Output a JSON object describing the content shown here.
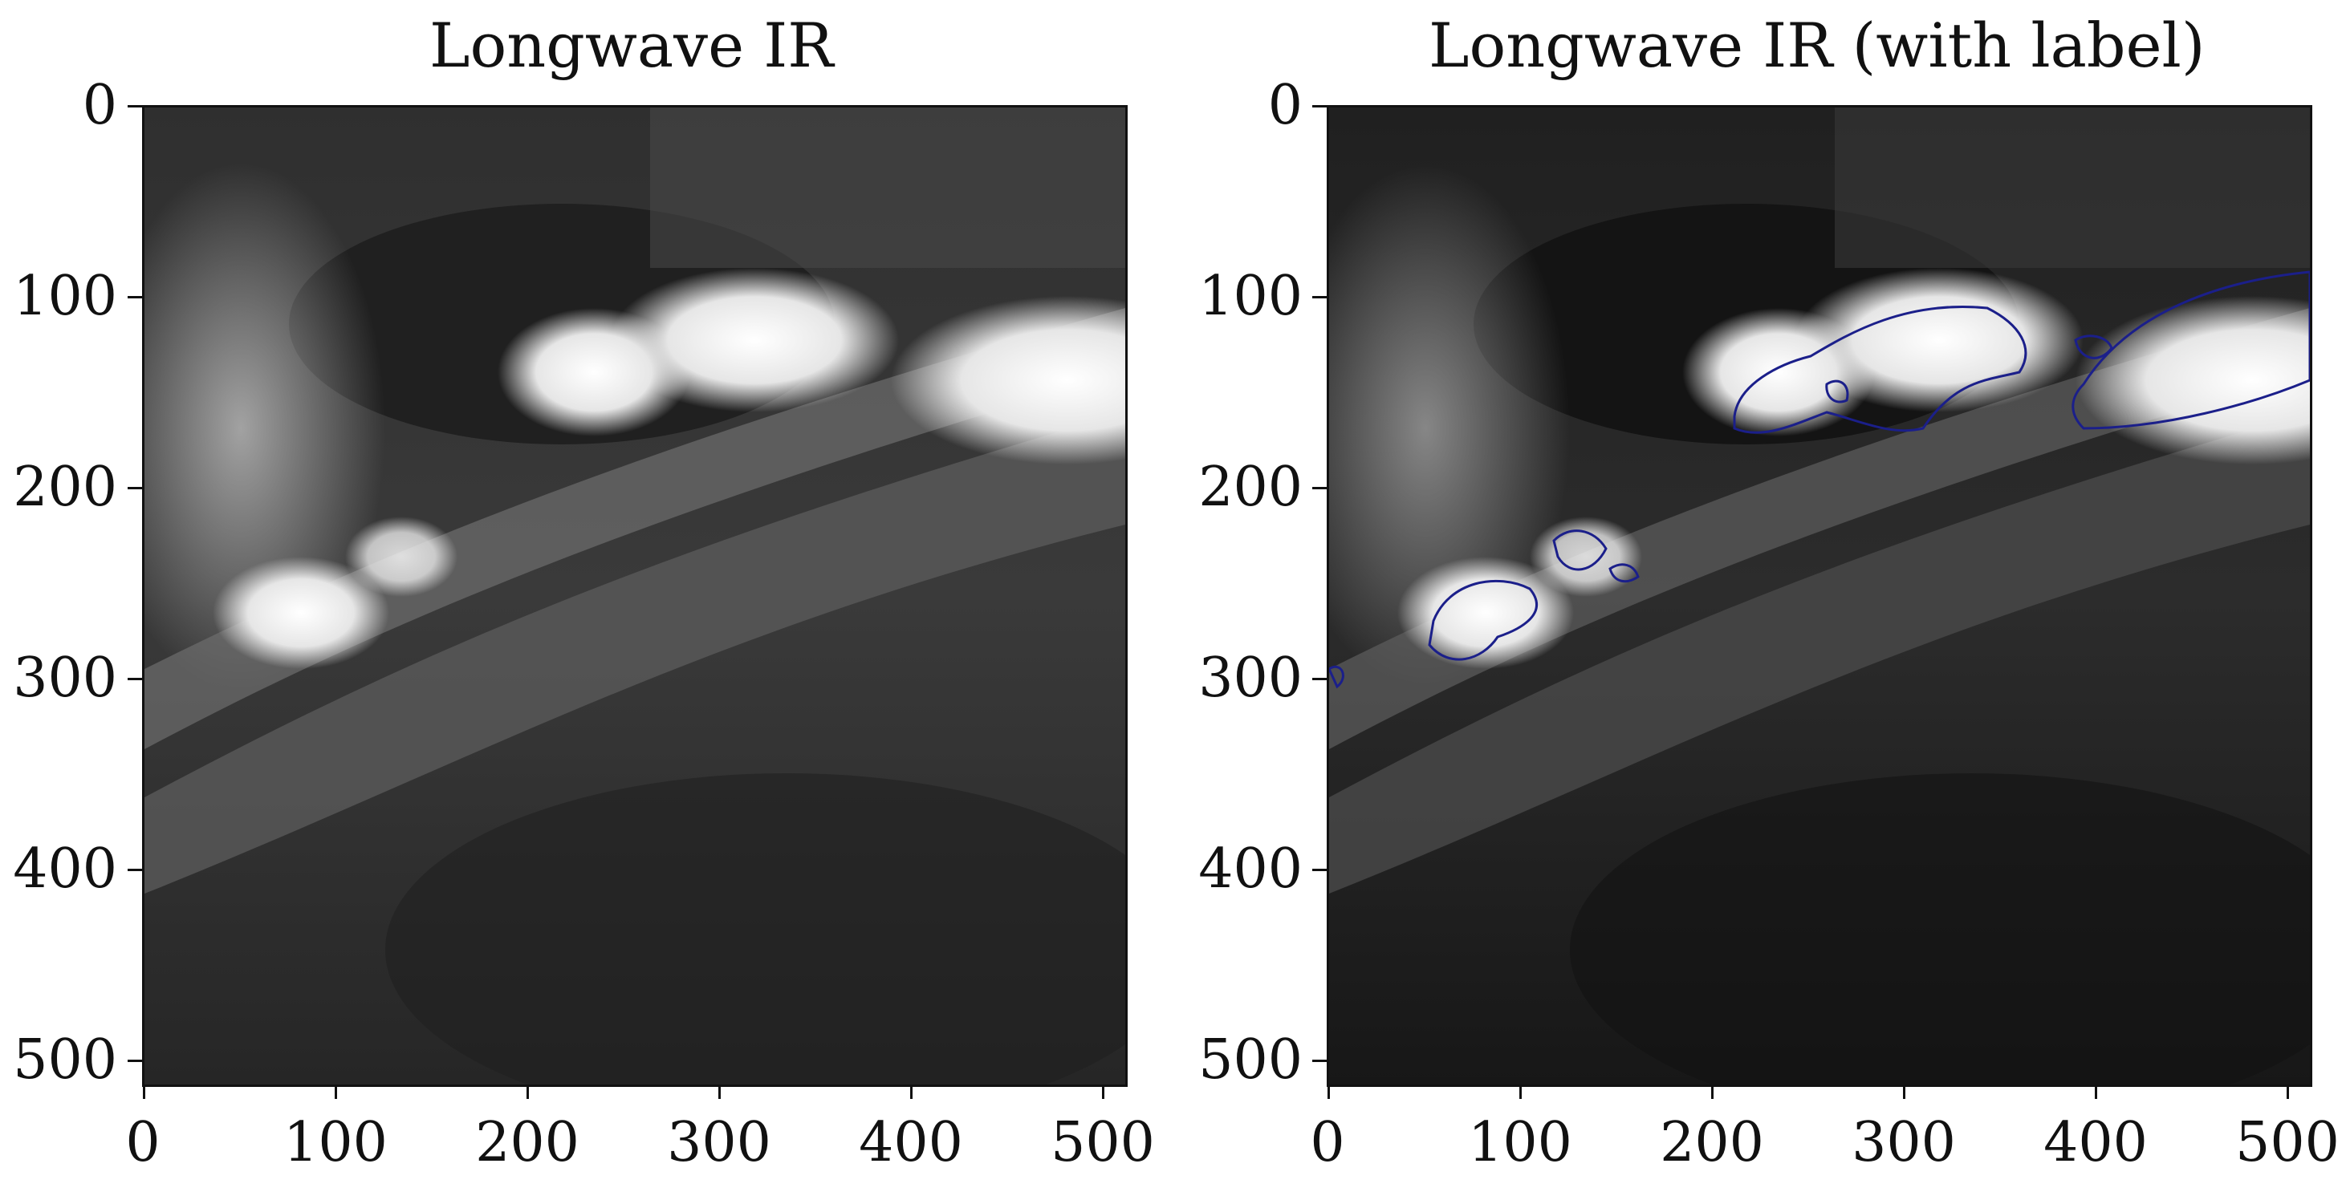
{
  "figure": {
    "panels": [
      {
        "title": "Longwave IR",
        "y_ticks": [
          "0",
          "100",
          "200",
          "300",
          "400",
          "500"
        ],
        "x_ticks": [
          "0",
          "100",
          "200",
          "300",
          "400",
          "500"
        ],
        "has_label_overlay": false
      },
      {
        "title": "Longwave IR (with label)",
        "y_ticks": [
          "0",
          "100",
          "200",
          "300",
          "400",
          "500"
        ],
        "x_ticks": [
          "0",
          "100",
          "200",
          "300",
          "400",
          "500"
        ],
        "has_label_overlay": true,
        "label_color": "#1b1f8a"
      }
    ],
    "axis_range": [
      0,
      512
    ],
    "image_colormap": "gray"
  }
}
